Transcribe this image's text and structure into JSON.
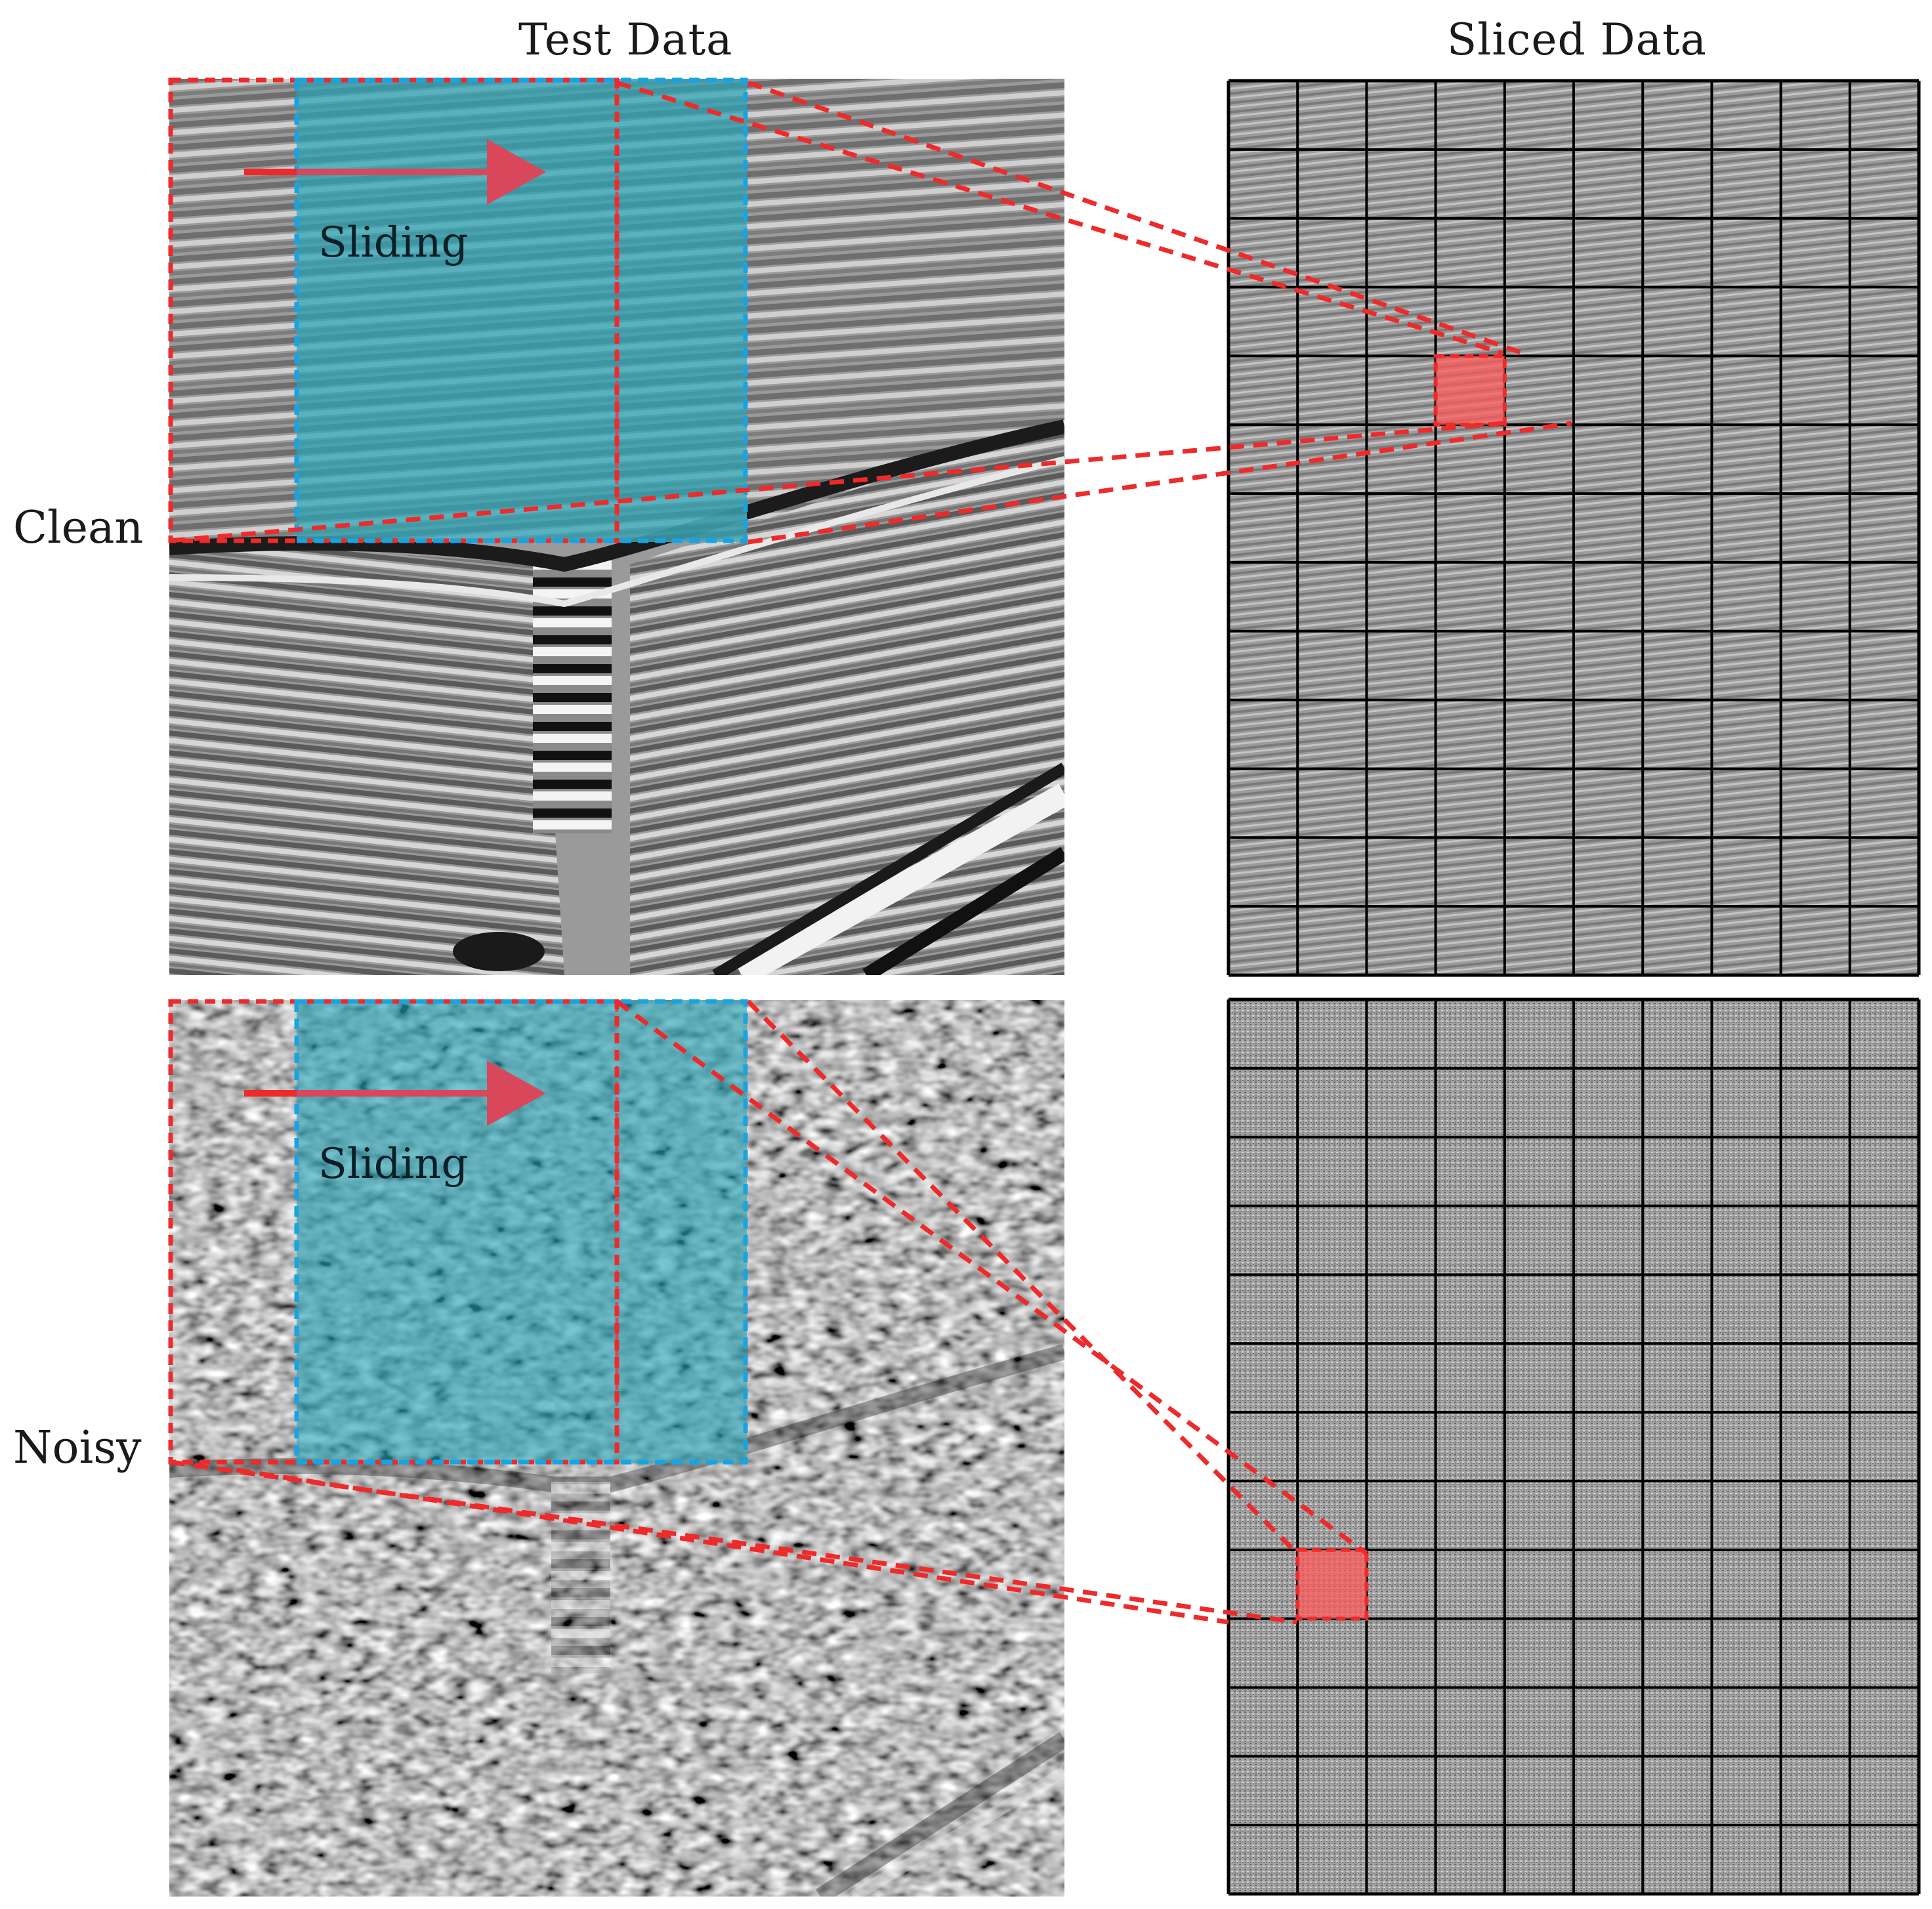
{
  "headers": {
    "test_data": "Test Data",
    "sliced_data": "Sliced Data"
  },
  "rows": [
    {
      "label": "Clean",
      "sliding_label": "Sliding",
      "kind": "clean"
    },
    {
      "label": "Noisy",
      "sliding_label": "Sliding",
      "kind": "noisy"
    }
  ],
  "grid": {
    "columns": 10,
    "rows": 13
  },
  "highlight": {
    "clean": {
      "row": 5,
      "col": 4
    },
    "noisy": {
      "row": 9,
      "col": 2
    }
  },
  "colors": {
    "window_red": "#ee2a2a",
    "window_blue": "#1aa3e0",
    "overlay_teal": "#2aa5b6",
    "arrow": "#d8485a",
    "grid_line": "#000000",
    "background_gray": "#8c8c8c"
  }
}
